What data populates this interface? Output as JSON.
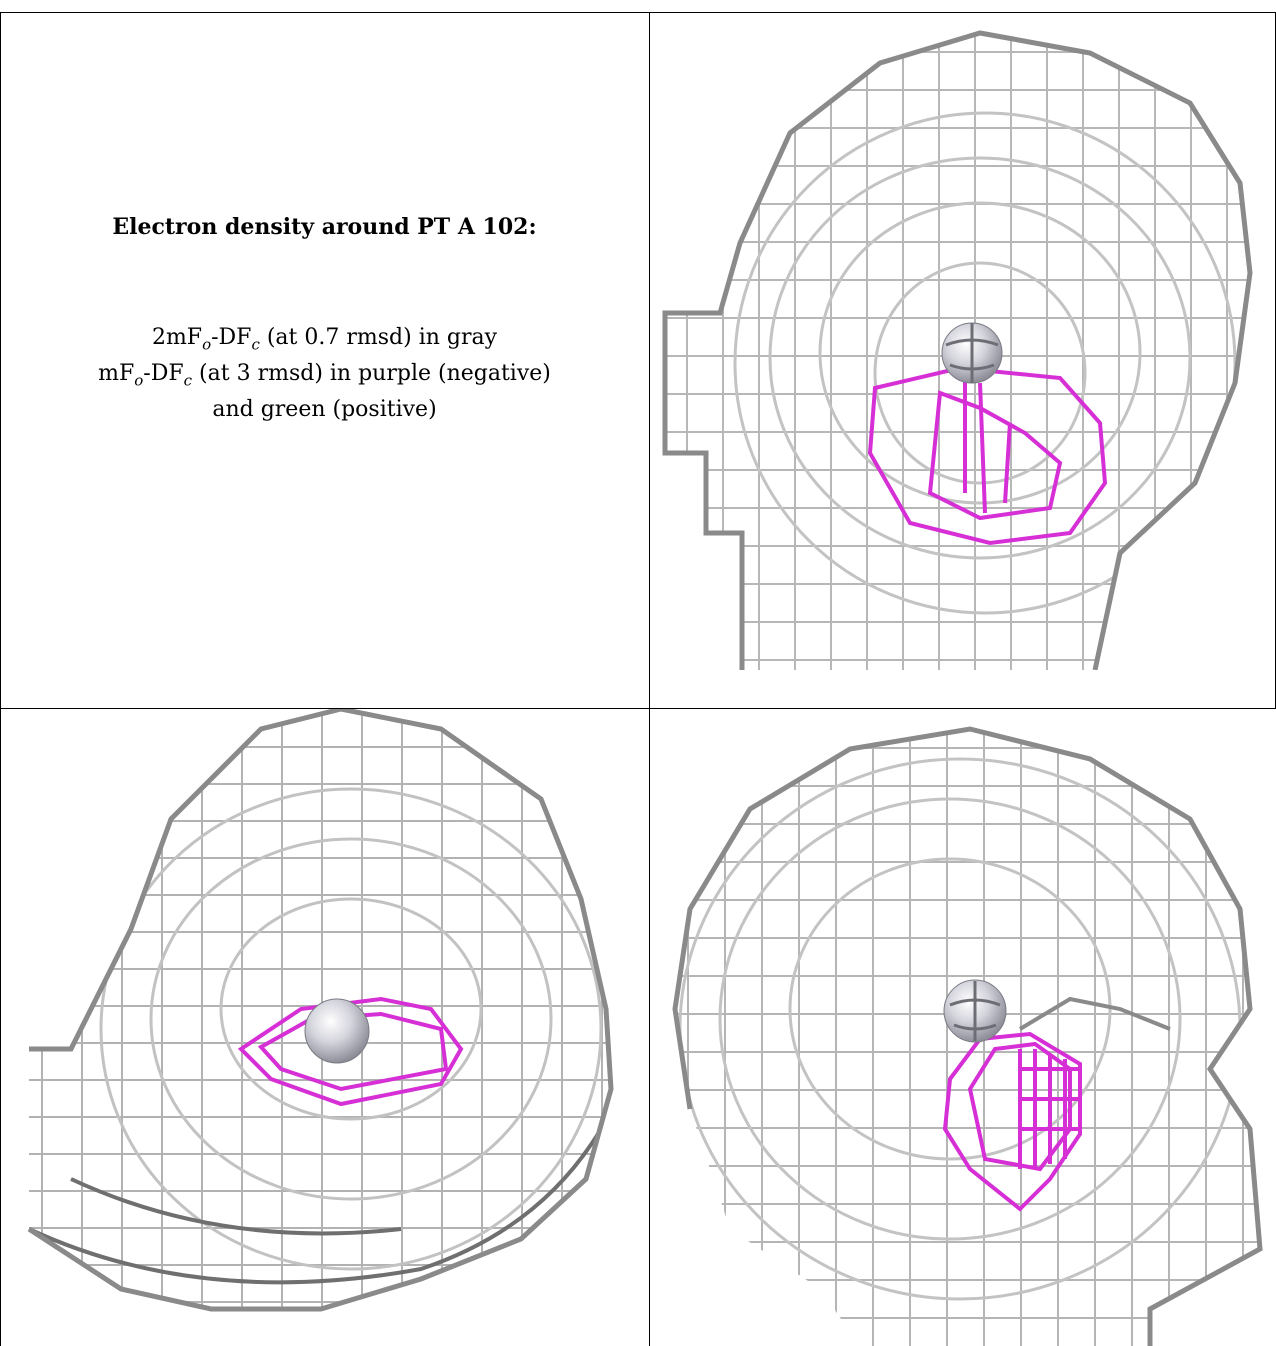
{
  "caption": {
    "title": "Electron density around PT A 102:",
    "line1": {
      "a": "2mF",
      "b": "o",
      "c": "-DF",
      "d": "c",
      "e": " (at 0.7 rmsd) in gray"
    },
    "line2": {
      "a": "mF",
      "b": "o",
      "c": "-DF",
      "d": "c",
      "e": " (at 3 rmsd) in purple (negative)"
    },
    "line3": "and green (positive)"
  },
  "colors": {
    "gray_mesh": "#b7b7b7",
    "dark_mesh": "#707070",
    "negative_mesh": "#d62fd6",
    "atom": "#c9c9d3"
  },
  "panels": [
    {
      "name": "view-top-right",
      "atom": "PT"
    },
    {
      "name": "view-bottom-left",
      "atom": "PT"
    },
    {
      "name": "view-bottom-right",
      "atom": "PT"
    }
  ]
}
